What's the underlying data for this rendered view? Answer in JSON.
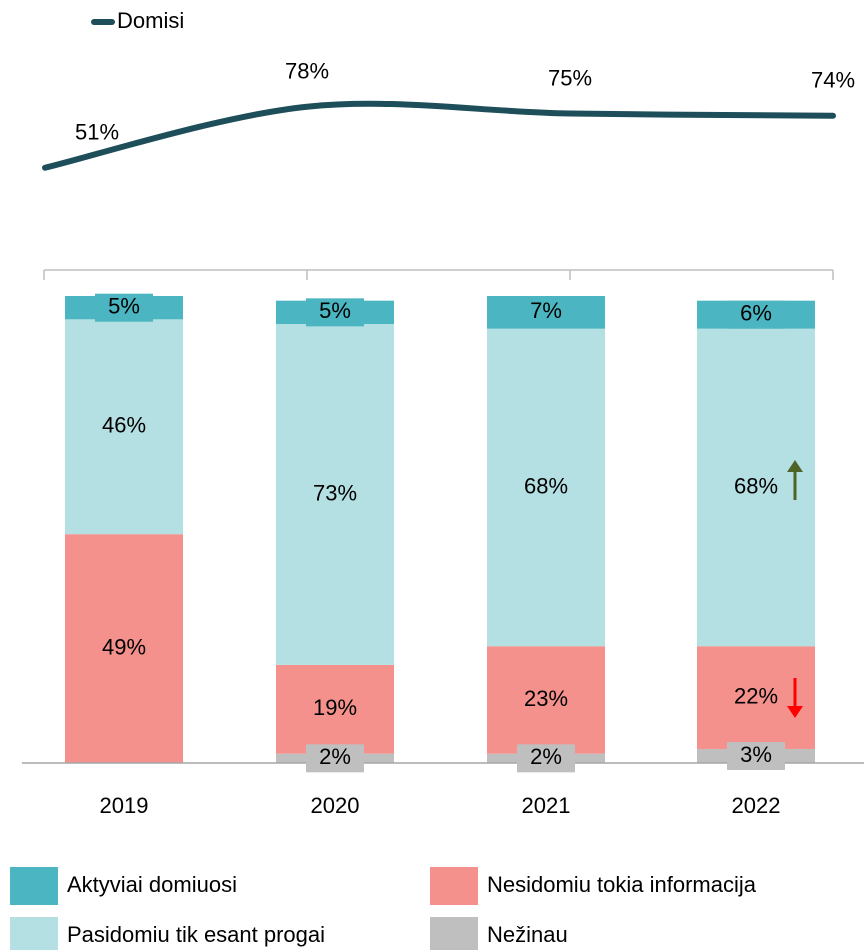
{
  "chart_data": {
    "type": "stacked-bar-line",
    "categories": [
      "2019",
      "2020",
      "2021",
      "2022"
    ],
    "ylim": [
      0,
      100
    ],
    "y2lim": [
      0,
      100
    ],
    "series": [
      {
        "name": "Nežinau",
        "color": "#bfbfbf",
        "values": [
          null,
          2,
          2,
          3
        ],
        "value_labels": [
          null,
          "2%",
          "2%",
          "3%"
        ]
      },
      {
        "name": "Nesidomiu tokia informacija",
        "color": "#f4918c",
        "values": [
          49,
          19,
          23,
          22
        ],
        "value_labels": [
          "49%",
          "19%",
          "23%",
          "22%"
        ]
      },
      {
        "name": "Pasidomiu tik esant progai",
        "color": "#b5e0e3",
        "values": [
          46,
          73,
          68,
          68
        ],
        "value_labels": [
          "46%",
          "73%",
          "68%",
          "68%"
        ]
      },
      {
        "name": "Aktyviai domiuosi",
        "color": "#4bb5c1",
        "values": [
          5,
          5,
          7,
          6
        ],
        "value_labels": [
          "5%",
          "5%",
          "7%",
          "6%"
        ]
      },
      {
        "name": "Domisi",
        "type": "line",
        "axis": "y2",
        "color": "#1d4e5a",
        "values": [
          51,
          78,
          75,
          74
        ],
        "value_labels": [
          "51%",
          "78%",
          "75%",
          "74%"
        ]
      }
    ]
  }
}
